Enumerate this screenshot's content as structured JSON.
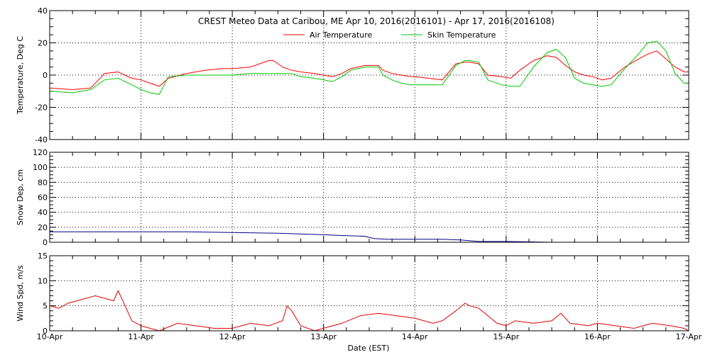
{
  "chart_data": [
    {
      "type": "line",
      "title": "CREST Meteo Data at Caribou, ME   Apr 10, 2016(2016101) - Apr 17, 2016(2016108)",
      "ylabel": "Temperature, Deg C",
      "ylim": [
        -40,
        40
      ],
      "yticks": [
        "-40",
        "-20",
        "0",
        "20",
        "40"
      ],
      "legend_position": "top-center",
      "series": [
        {
          "name": "Air Temperature",
          "color": "#ff0000",
          "x": [
            0,
            0.25,
            0.45,
            0.6,
            0.75,
            0.9,
            1.0,
            1.1,
            1.2,
            1.3,
            1.5,
            1.7,
            1.9,
            2.0,
            2.2,
            2.4,
            2.45,
            2.55,
            2.65,
            2.75,
            2.9,
            3.0,
            3.1,
            3.2,
            3.3,
            3.45,
            3.6,
            3.65,
            3.75,
            3.85,
            3.95,
            4.0,
            4.15,
            4.3,
            4.45,
            4.55,
            4.6,
            4.7,
            4.8,
            4.95,
            5.05,
            5.15,
            5.3,
            5.45,
            5.55,
            5.65,
            5.75,
            5.85,
            5.95,
            6.05,
            6.15,
            6.3,
            6.45,
            6.55,
            6.65,
            6.75,
            6.85,
            6.95,
            7.0
          ],
          "y": [
            -8,
            -9,
            -8,
            1,
            2,
            -2,
            -3,
            -5,
            -7,
            -2,
            1,
            3,
            4,
            4,
            5,
            9,
            9,
            5,
            3,
            2,
            1,
            0,
            -1,
            1,
            4,
            6,
            6,
            3,
            1,
            0,
            -1,
            -1,
            -2,
            -3,
            7,
            8,
            8,
            7,
            0,
            -1,
            -2,
            3,
            9,
            12,
            11,
            6,
            2,
            0,
            -1,
            -3,
            -2,
            5,
            10,
            13,
            15,
            10,
            5,
            2,
            2
          ]
        },
        {
          "name": "Skin Temperature",
          "color": "#00c800",
          "x": [
            0,
            0.25,
            0.45,
            0.6,
            0.75,
            0.9,
            1.0,
            1.1,
            1.2,
            1.3,
            1.5,
            1.7,
            1.9,
            2.0,
            2.2,
            2.4,
            2.45,
            2.55,
            2.65,
            2.75,
            2.9,
            3.0,
            3.1,
            3.2,
            3.3,
            3.45,
            3.6,
            3.65,
            3.75,
            3.85,
            3.95,
            4.0,
            4.15,
            4.3,
            4.45,
            4.55,
            4.6,
            4.7,
            4.8,
            4.95,
            5.05,
            5.15,
            5.3,
            5.45,
            5.55,
            5.65,
            5.75,
            5.85,
            5.95,
            6.05,
            6.15,
            6.3,
            6.45,
            6.55,
            6.65,
            6.75,
            6.85,
            6.95,
            7.0
          ],
          "y": [
            -10,
            -11,
            -9,
            -3,
            -2,
            -6,
            -9,
            -11,
            -12,
            -1,
            0,
            0,
            0,
            0,
            1,
            1,
            1,
            1,
            1,
            -1,
            -2,
            -3,
            -4,
            -1,
            3,
            5,
            5,
            0,
            -3,
            -5,
            -6,
            -6,
            -6,
            -6,
            6,
            9,
            9,
            8,
            -3,
            -6,
            -7,
            -7,
            5,
            14,
            16,
            11,
            -2,
            -5,
            -6,
            -7,
            -6,
            4,
            13,
            20,
            21,
            15,
            1,
            -5,
            -5
          ]
        }
      ]
    },
    {
      "type": "line",
      "title": "",
      "ylabel": "Snow Dep, cm",
      "ylim": [
        0,
        120
      ],
      "yticks": [
        "0",
        "20",
        "40",
        "60",
        "80",
        "100",
        "120"
      ],
      "series": [
        {
          "name": "",
          "color": "#00008b",
          "x": [
            0,
            0.5,
            1.0,
            1.5,
            2.0,
            2.5,
            3.0,
            3.2,
            3.45,
            3.55,
            3.7,
            4.0,
            4.3,
            4.5,
            4.7,
            5.0,
            5.5,
            6.0,
            6.5,
            6.9
          ],
          "y": [
            14,
            14,
            14,
            14,
            13,
            12,
            10,
            9,
            8,
            5,
            4,
            4,
            4,
            3,
            1,
            1,
            0,
            0,
            0,
            0
          ]
        }
      ]
    },
    {
      "type": "line",
      "title": "",
      "ylabel": "Wind Spd, m/s",
      "xlabel": "Date (EST)",
      "ylim": [
        0,
        15
      ],
      "yticks": [
        "0",
        "5",
        "10",
        "15"
      ],
      "categories": [
        "10-Apr",
        "11-Apr",
        "12-Apr",
        "13-Apr",
        "14-Apr",
        "15-Apr",
        "16-Apr",
        "17-Apr"
      ],
      "series": [
        {
          "name": "",
          "color": "#e00000",
          "x": [
            0,
            0.1,
            0.2,
            0.3,
            0.4,
            0.5,
            0.6,
            0.7,
            0.75,
            0.8,
            0.9,
            1.0,
            1.1,
            1.2,
            1.4,
            1.6,
            1.8,
            2.0,
            2.2,
            2.4,
            2.55,
            2.6,
            2.65,
            2.75,
            2.9,
            3.0,
            3.1,
            3.2,
            3.4,
            3.6,
            3.8,
            4.0,
            4.2,
            4.3,
            4.45,
            4.55,
            4.6,
            4.7,
            4.8,
            4.9,
            5.0,
            5.1,
            5.3,
            5.5,
            5.6,
            5.7,
            5.9,
            6.0,
            6.2,
            6.4,
            6.6,
            6.8,
            6.95,
            7.0
          ],
          "y": [
            5,
            4.5,
            5.5,
            6,
            6.5,
            7,
            6.5,
            6,
            8,
            6,
            2,
            1,
            0.5,
            0,
            1.5,
            1,
            0.5,
            0.5,
            1.5,
            1,
            2,
            5,
            4,
            1,
            0,
            0.5,
            1,
            1.5,
            3,
            3.5,
            3,
            2.5,
            1.5,
            2,
            4,
            5.5,
            5,
            4.5,
            3,
            1.5,
            1,
            2,
            1.5,
            2,
            3.5,
            1.5,
            1,
            1.5,
            1,
            0.5,
            1.5,
            1,
            0.5,
            0
          ]
        }
      ]
    }
  ]
}
